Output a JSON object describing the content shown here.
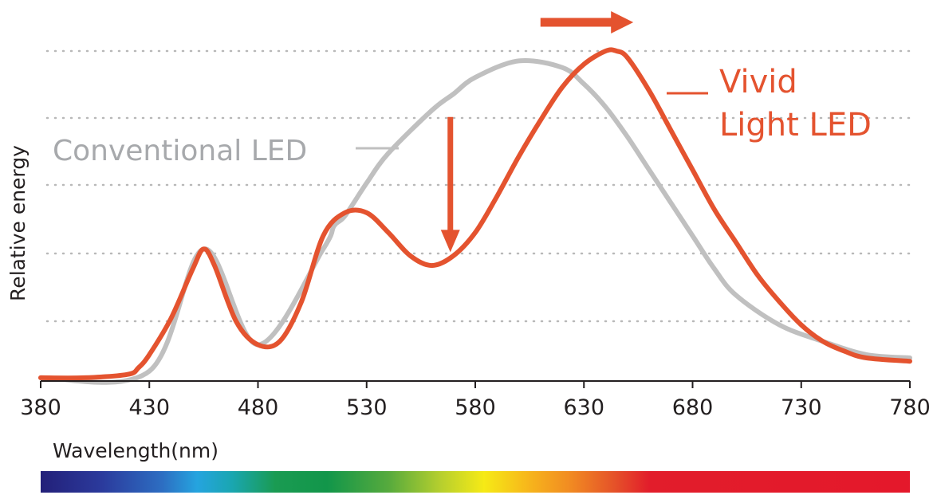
{
  "chart_data": {
    "type": "line",
    "title": "",
    "xlabel": "Wavelength(nm)",
    "ylabel": "Relative energy",
    "xlim": [
      380,
      780
    ],
    "ylim": [
      0,
      1
    ],
    "x_ticks": [
      "380",
      "430",
      "480",
      "530",
      "580",
      "630",
      "680",
      "730",
      "780"
    ],
    "grid": "horizontal dotted",
    "colors": {
      "conventional": "#c0c0c0",
      "vivid": "#e4532f",
      "axis": "#231f20"
    },
    "series": [
      {
        "name": "Conventional LED",
        "x": [
          380,
          430,
          455,
          480,
          510,
          515,
          520,
          530,
          540,
          560,
          570,
          580,
          600,
          620,
          630,
          640,
          650,
          660,
          680,
          690,
          700,
          720,
          740,
          760,
          780
        ],
        "y": [
          0.01,
          0.03,
          0.4,
          0.11,
          0.4,
          0.47,
          0.5,
          0.6,
          0.69,
          0.82,
          0.87,
          0.92,
          0.97,
          0.95,
          0.9,
          0.83,
          0.74,
          0.64,
          0.44,
          0.34,
          0.26,
          0.17,
          0.12,
          0.08,
          0.07
        ]
      },
      {
        "name": "Vivid Light LED",
        "x": [
          380,
          400,
          420,
          425,
          430,
          440,
          450,
          455,
          460,
          470,
          480,
          490,
          500,
          510,
          520,
          530,
          540,
          550,
          560,
          570,
          580,
          590,
          600,
          610,
          620,
          630,
          640,
          645,
          650,
          660,
          670,
          680,
          690,
          700,
          710,
          720,
          730,
          740,
          750,
          760,
          780
        ],
        "y": [
          0.01,
          0.01,
          0.02,
          0.04,
          0.08,
          0.19,
          0.34,
          0.4,
          0.35,
          0.18,
          0.11,
          0.12,
          0.24,
          0.44,
          0.51,
          0.51,
          0.45,
          0.38,
          0.35,
          0.38,
          0.45,
          0.56,
          0.68,
          0.79,
          0.89,
          0.96,
          1.0,
          1.0,
          0.98,
          0.88,
          0.76,
          0.64,
          0.52,
          0.42,
          0.32,
          0.24,
          0.17,
          0.12,
          0.09,
          0.07,
          0.06
        ]
      }
    ],
    "legend": [
      {
        "text": "Conventional LED",
        "series": "Conventional LED"
      },
      {
        "text": "Vivid",
        "series": "Vivid Light LED"
      },
      {
        "text": "Light LED",
        "series": "Vivid Light LED"
      }
    ],
    "annotations": [
      {
        "type": "arrow-down",
        "x": 570,
        "y_from": 0.8,
        "y_to": 0.4,
        "meaning": "dip in the 570 nm region"
      },
      {
        "type": "arrow-right",
        "x_from": 610,
        "x_to": 652,
        "y": 1.09,
        "meaning": "peak shifted to longer wavelength"
      }
    ],
    "color_spectrum_bar": true
  }
}
